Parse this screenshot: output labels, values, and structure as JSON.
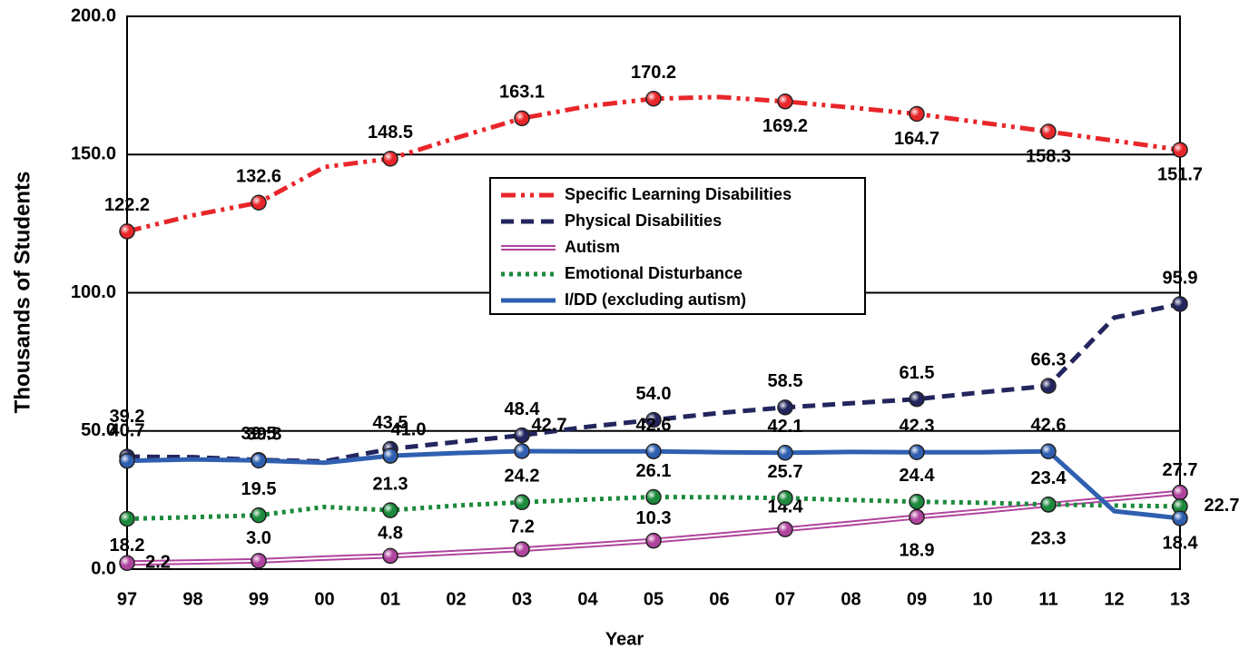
{
  "chart_data": {
    "type": "line",
    "x_label": "Year",
    "y_label": "Thousands of Students",
    "categories": [
      "97",
      "98",
      "99",
      "00",
      "01",
      "02",
      "03",
      "04",
      "05",
      "06",
      "07",
      "08",
      "09",
      "10",
      "11",
      "12",
      "13"
    ],
    "ylim": [
      0,
      200
    ],
    "yticks": [
      {
        "value": 0,
        "label": "0.0"
      },
      {
        "value": 50,
        "label": "50.0"
      },
      {
        "value": 100,
        "label": "100.0"
      },
      {
        "value": 150,
        "label": "150.0"
      },
      {
        "value": 200,
        "label": "200.0"
      }
    ],
    "grid": true,
    "series": [
      {
        "name": "Specific Learning Disabilities",
        "color": "#e8262a",
        "dash": "dashdotdot",
        "values": [
          122.2,
          128,
          132.6,
          145.5,
          148.5,
          156,
          163.1,
          167.5,
          170.2,
          170.8,
          169.2,
          167,
          164.7,
          161.5,
          158.3,
          155,
          151.7
        ],
        "value_labels": [
          "122.2",
          null,
          "132.6",
          null,
          "148.5",
          null,
          "163.1",
          null,
          "170.2",
          null,
          "169.2",
          null,
          "164.7",
          null,
          "158.3",
          null,
          "151.7"
        ]
      },
      {
        "name": "Physical Disabilities",
        "color": "#23255e",
        "dash": "dash",
        "values": [
          40.7,
          40.5,
          39.5,
          39,
          43.5,
          46,
          48.4,
          51.5,
          54.0,
          56.5,
          58.5,
          60,
          61.5,
          64,
          66.3,
          91,
          95.9
        ],
        "value_labels": [
          "40.7",
          null,
          "39.5",
          null,
          "43.5",
          null,
          "48.4",
          null,
          "54.0",
          null,
          "58.5",
          null,
          "61.5",
          null,
          "66.3",
          null,
          "95.9"
        ]
      },
      {
        "name": "Autism",
        "color": "#b0449e",
        "dash": "double",
        "values": [
          2.2,
          2.6,
          3.0,
          4,
          4.8,
          6,
          7.2,
          8.7,
          10.3,
          12.3,
          14.4,
          16.6,
          18.9,
          21,
          23.3,
          25.5,
          27.7
        ],
        "value_labels": [
          "2.2",
          null,
          "3.0",
          null,
          "4.8",
          null,
          "7.2",
          null,
          "10.3",
          null,
          "14.4",
          null,
          "18.9",
          null,
          "23.3",
          null,
          "27.7"
        ]
      },
      {
        "name": "Emotional Disturbance",
        "color": "#1b8a3c",
        "dash": "dot",
        "values": [
          18.2,
          18.8,
          19.5,
          22.5,
          21.3,
          23,
          24.2,
          25.2,
          26.1,
          26,
          25.7,
          25,
          24.4,
          24,
          23.4,
          23,
          22.7
        ],
        "value_labels": [
          "18.2",
          null,
          "19.5",
          null,
          "21.3",
          null,
          "24.2",
          null,
          "26.1",
          null,
          "25.7",
          null,
          "24.4",
          null,
          "23.4",
          null,
          "22.7"
        ]
      },
      {
        "name": "I/DD (excluding autism)",
        "color": "#2f5fb0",
        "dash": "solid",
        "values": [
          39.2,
          39.7,
          39.3,
          38.5,
          41.0,
          42,
          42.7,
          42.6,
          42.6,
          42.3,
          42.1,
          42.4,
          42.3,
          42.3,
          42.6,
          21,
          18.4
        ],
        "value_labels": [
          "39.2",
          null,
          "39.3",
          null,
          "41.0",
          null,
          "42.7",
          null,
          "42.6",
          null,
          "42.1",
          null,
          "42.3",
          null,
          "42.6",
          null,
          "18.4"
        ]
      }
    ]
  }
}
